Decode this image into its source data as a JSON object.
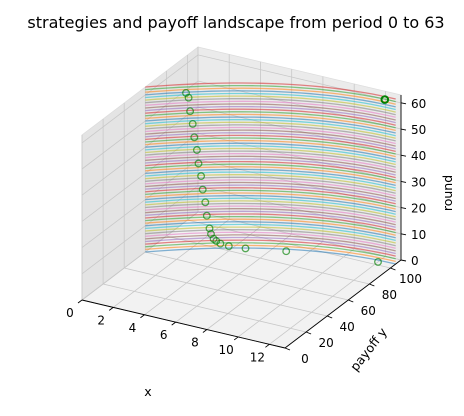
{
  "chart_data": {
    "type": "3d-line-scatter",
    "title": "strategies and payoff landscape from period 0 to 63",
    "xlabel": "x",
    "ylabel": "payoff y",
    "zlabel": "round",
    "xlim": [
      0,
      13
    ],
    "ylim": [
      0,
      110
    ],
    "zlim": [
      0,
      63
    ],
    "xticks": [
      0,
      2,
      4,
      6,
      8,
      10,
      12
    ],
    "yticks": [
      0,
      20,
      40,
      60,
      80,
      100
    ],
    "zticks": [
      0,
      10,
      20,
      30,
      40,
      50,
      60
    ],
    "grid": true,
    "series": [
      {
        "kind": "payoff-curves",
        "description_of_rounds": "one payoff curve per round, rounds 0 to 63",
        "rounds": [
          0,
          63
        ],
        "x_range": [
          0,
          13
        ],
        "y_at_x0": 60,
        "y_peak": 105,
        "x_peak": 13
      },
      {
        "kind": "strategies",
        "marker": "open-circle",
        "color": "#008000",
        "points": [
          {
            "round": 63,
            "x": 12.5,
            "y": 102
          },
          {
            "round": 0,
            "x": 12.0,
            "y": 103
          },
          {
            "round": 1,
            "x": 7.0,
            "y": 90
          },
          {
            "round": 2,
            "x": 5.0,
            "y": 81
          },
          {
            "round": 3,
            "x": 4.2,
            "y": 77
          },
          {
            "round": 4,
            "x": 3.8,
            "y": 75
          },
          {
            "round": 5,
            "x": 3.6,
            "y": 74
          },
          {
            "round": 6,
            "x": 3.5,
            "y": 73
          },
          {
            "round": 8,
            "x": 3.4,
            "y": 72
          },
          {
            "round": 10,
            "x": 3.3,
            "y": 72
          },
          {
            "round": 15,
            "x": 3.2,
            "y": 71
          },
          {
            "round": 20,
            "x": 3.1,
            "y": 71
          },
          {
            "round": 25,
            "x": 3.0,
            "y": 70
          },
          {
            "round": 30,
            "x": 2.9,
            "y": 70
          },
          {
            "round": 35,
            "x": 2.8,
            "y": 69
          },
          {
            "round": 40,
            "x": 2.7,
            "y": 69
          },
          {
            "round": 45,
            "x": 2.6,
            "y": 68
          },
          {
            "round": 50,
            "x": 2.5,
            "y": 68
          },
          {
            "round": 55,
            "x": 2.4,
            "y": 67
          },
          {
            "round": 60,
            "x": 2.3,
            "y": 67
          },
          {
            "round": 62,
            "x": 2.2,
            "y": 66
          }
        ]
      }
    ]
  }
}
